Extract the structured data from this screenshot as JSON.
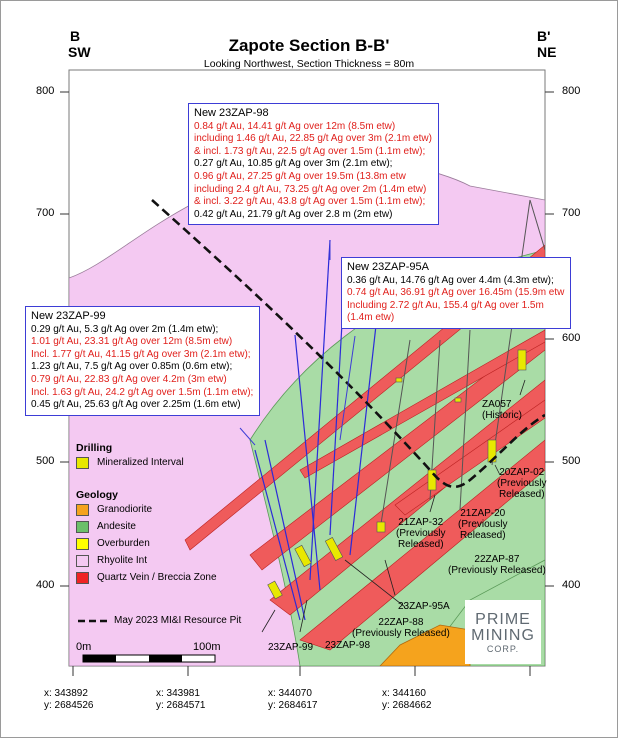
{
  "header": {
    "left_letter": "B",
    "left_dir": "SW",
    "right_letter": "B'",
    "right_dir": "NE",
    "title": "Zapote Section B-B'",
    "subtitle": "Looking Northwest, Section Thickness = 80m"
  },
  "elevations": {
    "left": [
      "800",
      "700",
      "500",
      "400"
    ],
    "right": [
      "800",
      "700",
      "600",
      "500",
      "400"
    ]
  },
  "callouts": [
    {
      "title": "New 23ZAP-98",
      "lines": [
        {
          "text": "0.84 g/t Au, 14.41 g/t Ag over 12m (8.5m etw)",
          "color": "red"
        },
        {
          "text": "including 1.46 g/t Au, 22.85 g/t Ag over 3m (2.1m etw)",
          "color": "red"
        },
        {
          "text": "& incl. 1.73 g/t Au, 22.5 g/t Ag over 1.5m (1.1m etw);",
          "color": "red"
        },
        {
          "text": "0.27 g/t Au, 10.85 g/t Ag over 3m (2.1m etw);",
          "color": "black"
        },
        {
          "text": "0.96 g/t Au, 27.25 g/t Ag over 19.5m (13.8m etw",
          "color": "red"
        },
        {
          "text": "including 2.4 g/t Au, 73.25 g/t Ag over 2m (1.4m etw)",
          "color": "red"
        },
        {
          "text": "& incl. 3.22 g/t Au, 43.8 g/t Ag over 1.5m (1.1m etw);",
          "color": "red"
        },
        {
          "text": "0.42 g/t Au, 21.79 g/t Ag over 2.8 m (2m etw)",
          "color": "black"
        }
      ]
    },
    {
      "title": "New 23ZAP-95A",
      "lines": [
        {
          "text": "0.36 g/t Au, 14.76 g/t Ag over 4.4m (4.3m etw);",
          "color": "black"
        },
        {
          "text": "0.74 g/t Au, 36.91 g/t Ag over 16.45m (15.9m etw",
          "color": "red"
        },
        {
          "text": "Including 2.72 g/t Au, 155.4 g/t Ag over 1.5m",
          "color": "red"
        },
        {
          "text": "(1.4m etw)",
          "color": "red"
        }
      ]
    },
    {
      "title": "New 23ZAP-99",
      "lines": [
        {
          "text": "0.29 g/t Au, 5.3 g/t Ag over 2m (1.4m etw);",
          "color": "black"
        },
        {
          "text": "1.01 g/t Au, 23.31 g/t Ag over 12m (8.5m etw)",
          "color": "red"
        },
        {
          "text": "Incl. 1.77 g/t Au, 41.15 g/t Ag over 3m (2.1m etw);",
          "color": "red"
        },
        {
          "text": "1.23 g/t Au, 7.5 g/t Ag over 0.85m (0.6m etw);",
          "color": "black"
        },
        {
          "text": "0.79 g/t Au, 22.83 g/t Ag over 4.2m (3m etw)",
          "color": "red"
        },
        {
          "text": "Incl. 1.63 g/t Au, 24.2 g/t Ag over 1.5m (1.1m etw);",
          "color": "red"
        },
        {
          "text": "0.45 g/t Au, 25.63 g/t Ag over 2.25m (1.6m etw)",
          "color": "black"
        }
      ]
    }
  ],
  "holes": {
    "zap057": "ZA057\n(Historic)",
    "zap02": "20ZAP-02\n(Previously\nReleased)",
    "zap32": "21ZAP-32\n(Previously\nReleased)",
    "zap20": "21ZAP-20\n(Previously\nReleased)",
    "zap87": "22ZAP-87\n(Previously Released)",
    "zap95a": "23ZAP-95A",
    "zap88": "22ZAP-88\n(Previously Released)",
    "zap98": "23ZAP-98",
    "zap99": "23ZAP-99"
  },
  "legend": {
    "drilling_title": "Drilling",
    "drilling_items": [
      {
        "label": "Mineralized Interval",
        "color": "#e8e800"
      }
    ],
    "geology_title": "Geology",
    "geology_items": [
      {
        "label": "Granodiorite",
        "color": "#f5a31d"
      },
      {
        "label": "Andesite",
        "color": "#6cbf6a"
      },
      {
        "label": "Overburden",
        "color": "#ffff00"
      },
      {
        "label": "Rhyolite Int",
        "color": "#f4c9f2"
      },
      {
        "label": "Quartz Vein / Breccia Zone",
        "color": "#ef2424"
      }
    ],
    "pit_label": "May 2023 MI&I Resource Pit"
  },
  "scale": {
    "left": "0m",
    "right": "100m"
  },
  "coordinates": [
    {
      "x": "x: 343892",
      "y": "y: 2684526"
    },
    {
      "x": "x: 343981",
      "y": "y: 2684571"
    },
    {
      "x": "x: 344070",
      "y": "y: 2684617"
    },
    {
      "x": "x: 344160",
      "y": "y: 2684662"
    }
  ],
  "logo": {
    "line1": "PRIME",
    "line2": "MINING",
    "line3": "CORP."
  },
  "colors": {
    "rhyolite": "#f4c9f2",
    "andesite": "#a9dca6",
    "quartz_vein": "#ef5b5b",
    "granodiorite": "#f5a31d",
    "callout_border": "#3d3dd6",
    "drill_trace": "#2b2bd8"
  }
}
